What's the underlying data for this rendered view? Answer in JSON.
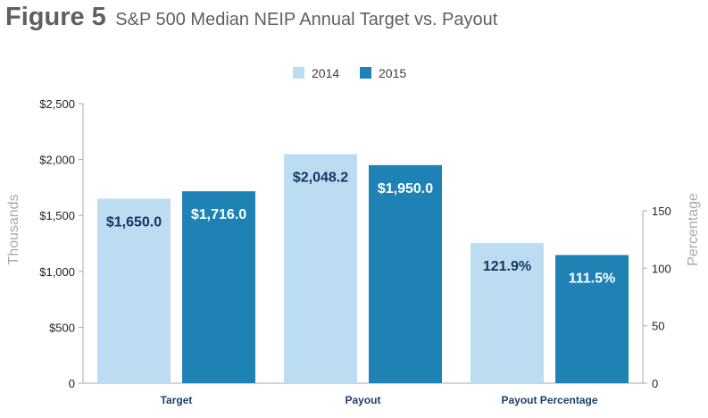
{
  "chart_data": {
    "type": "bar",
    "title_prefix": "Figure 5",
    "title": "S&P 500 Median NEIP Annual Target vs. Payout",
    "categories": [
      "Target",
      "Payout",
      "Payout Percentage"
    ],
    "series": [
      {
        "name": "2014",
        "color": "#bcdcf2",
        "label_color": "#14365f",
        "values": [
          1650.0,
          2048.2,
          121.9
        ],
        "labels": [
          "$1,650.0",
          "$2,048.2",
          "121.9%"
        ]
      },
      {
        "name": "2015",
        "color": "#1f82b5",
        "label_color": "#ffffff",
        "values": [
          1716.0,
          1950.0,
          111.5
        ],
        "labels": [
          "$1,716.0",
          "$1,950.0",
          "111.5%"
        ]
      }
    ],
    "axis_for_category": [
      "left",
      "left",
      "right"
    ],
    "left_axis": {
      "label": "Thousands",
      "ylim": [
        0,
        2500
      ],
      "ticks": [
        0,
        500,
        1000,
        1500,
        2000,
        2500
      ],
      "tick_labels": [
        "0",
        "$500",
        "$1,000",
        "$1,500",
        "$2,000",
        "$2,500"
      ]
    },
    "right_axis": {
      "label": "Percentage",
      "ylim": [
        0,
        150
      ],
      "ticks": [
        0,
        50,
        100,
        150
      ],
      "tick_labels": [
        "0",
        "50",
        "100",
        "150"
      ]
    },
    "legend_position": "top-center",
    "grid": false
  }
}
